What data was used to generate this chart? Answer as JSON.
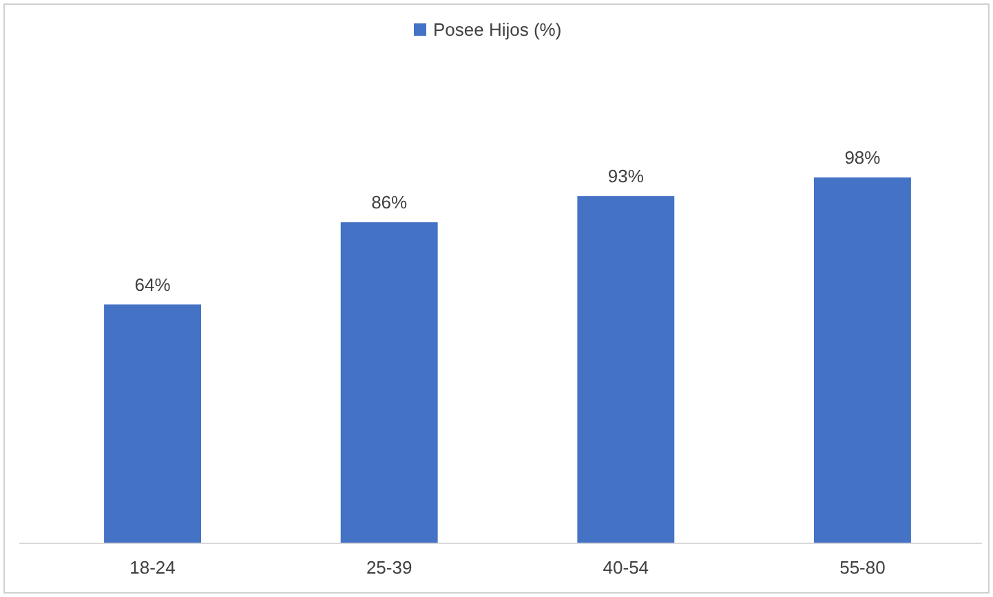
{
  "chart_data": {
    "type": "bar",
    "categories": [
      "18-24",
      "25-39",
      "40-54",
      "55-80"
    ],
    "series": [
      {
        "name": "Posee Hijos (%)",
        "color": "#4472c4",
        "values": [
          64,
          86,
          93,
          98
        ],
        "value_labels": [
          "64%",
          "86%",
          "93%",
          "98%"
        ]
      }
    ],
    "legend": "top"
  }
}
